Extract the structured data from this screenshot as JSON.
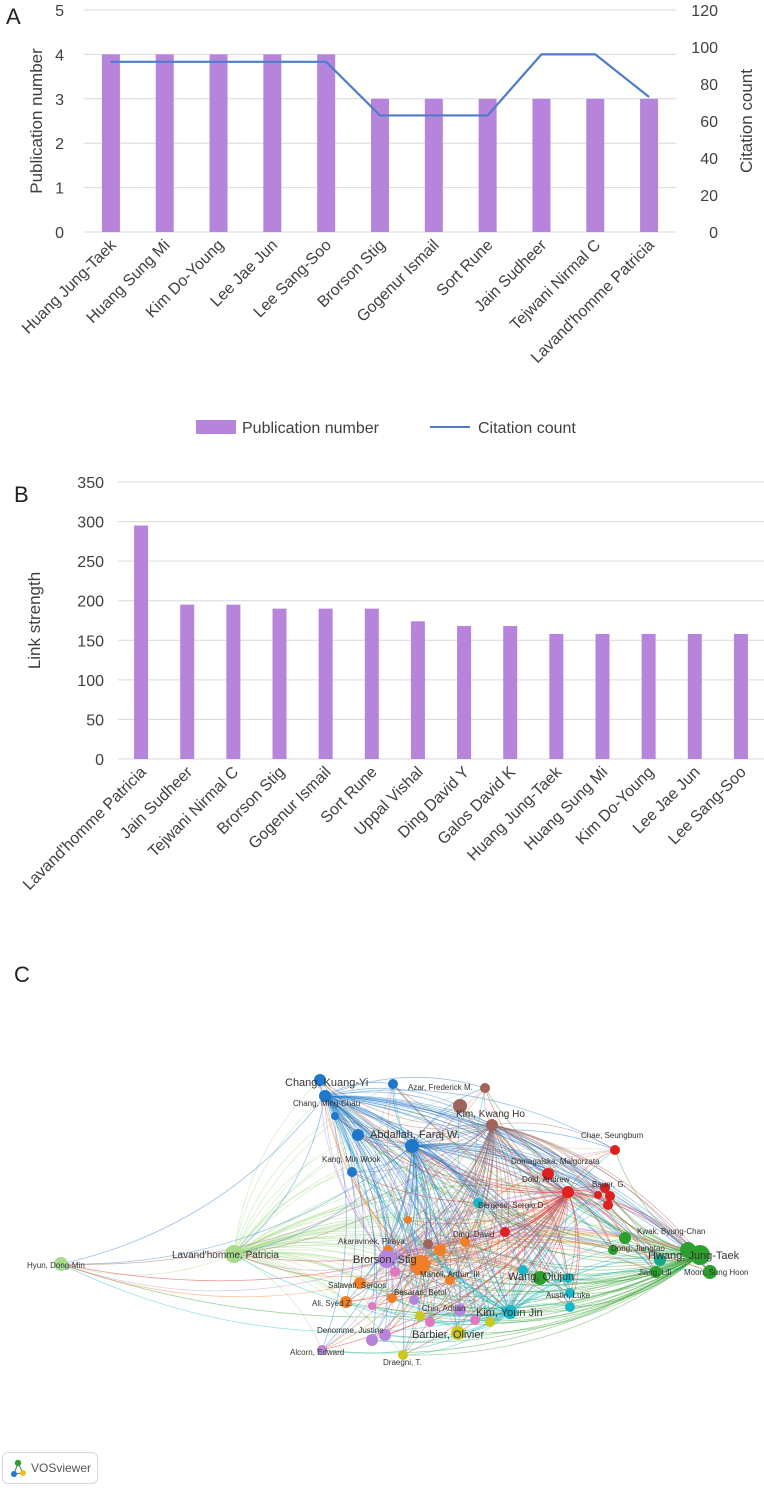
{
  "panels": {
    "a": "A",
    "b": "B",
    "c": "C"
  },
  "colors": {
    "bar": "#b784dc",
    "line": "#4f7cc9",
    "grid": "#d9d9d9"
  },
  "chart_data": [
    {
      "type": "bar",
      "title": "",
      "categories": [
        "Huang Jung-Taek",
        "Huang Sung Mi",
        "Kim Do-Young",
        "Lee Jae Jun",
        "Lee Sang-Soo",
        "Brorson Stig",
        "Gogenur Ismail",
        "Sort Rune",
        "Jain Sudheer",
        "Tejwani Nirmal C",
        "Lavand'homme Patricia"
      ],
      "series": [
        {
          "name": "Publication number",
          "kind": "bar",
          "axis": "left",
          "values": [
            4,
            4,
            4,
            4,
            4,
            3,
            3,
            3,
            3,
            3,
            3
          ]
        },
        {
          "name": "Citation count",
          "kind": "line",
          "axis": "right",
          "values": [
            92,
            92,
            92,
            92,
            92,
            63,
            63,
            63,
            96,
            96,
            73
          ]
        }
      ],
      "ylabel": "Publication number",
      "y2label": "Citation count",
      "ylim": [
        0,
        5
      ],
      "y2lim": [
        0,
        120
      ],
      "yticks": [
        "0",
        "1",
        "2",
        "3",
        "4",
        "5"
      ],
      "y2ticks": [
        "0",
        "20",
        "40",
        "60",
        "80",
        "100",
        "120"
      ],
      "legend": [
        "Publication number",
        "Citation count"
      ],
      "legend_position": "bottom"
    },
    {
      "type": "bar",
      "title": "",
      "categories": [
        "Lavand'homme Patricia",
        "Jain Sudheer",
        "Tejwani Nirmal C",
        "Brorson Stig",
        "Gogenur Ismail",
        "Sort Rune",
        "Uppal Vishal",
        "Ding David Y",
        "Galos David K",
        "Huang Jung-Taek",
        "Huang Sung Mi",
        "Kim Do-Young",
        "Lee Jae Jun",
        "Lee Sang-Soo"
      ],
      "values": [
        295,
        195,
        195,
        190,
        190,
        190,
        174,
        168,
        168,
        158,
        158,
        158,
        158,
        158
      ],
      "ylabel": "Link strength",
      "ylim": [
        0,
        350
      ],
      "yticks": [
        "0",
        "50",
        "100",
        "150",
        "200",
        "250",
        "300",
        "350"
      ]
    }
  ],
  "network": {
    "nodes": [
      {
        "label": "Chang, Kuang-Yi",
        "color": "#1f77c9"
      },
      {
        "label": "Chang, Ming-Chau",
        "color": "#1f77c9"
      },
      {
        "label": "Azar, Frederick M.",
        "color": "#a0645a"
      },
      {
        "label": "Kim, Kwang Ho",
        "color": "#a0645a"
      },
      {
        "label": "Abdallah, Faraj W.",
        "color": "#1f77c9"
      },
      {
        "label": "Chae, Seungbum",
        "color": "#e02020"
      },
      {
        "label": "Kang, Min Wook",
        "color": "#1f77c9"
      },
      {
        "label": "Domagalska, Malgorzata",
        "color": "#e02020"
      },
      {
        "label": "Dold, Andrew",
        "color": "#e02020"
      },
      {
        "label": "Bauer, G.",
        "color": "#e02020"
      },
      {
        "label": "Bergese, Sergio D.",
        "color": "#17b8c8"
      },
      {
        "label": "Kwak, Byung-Chan",
        "color": "#2ca02c"
      },
      {
        "label": "Lavand'homme, Patricia",
        "color": "#a6dc8c"
      },
      {
        "label": "Akaravinek, Piraya",
        "color": "#f07e26"
      },
      {
        "label": "Ding, David",
        "color": "#f07e26"
      },
      {
        "label": "Dong, Jiangtao",
        "color": "#2ca02c"
      },
      {
        "label": "Hwang, Jung-Taek",
        "color": "#2ca02c"
      },
      {
        "label": "Hyun, Dong-Min",
        "color": "#a6dc8c"
      },
      {
        "label": "Brorson, Stig",
        "color": "#b784dc"
      },
      {
        "label": "Jiang, Lili",
        "color": "#2ca02c"
      },
      {
        "label": "Moon, Sung Hoon",
        "color": "#2ca02c"
      },
      {
        "label": "Manoli, Arthur, III",
        "color": "#f07e26"
      },
      {
        "label": "Wang, Qiujun",
        "color": "#2ca02c"
      },
      {
        "label": "Salavati, Seroos",
        "color": "#f07e26"
      },
      {
        "label": "Austin, Luke",
        "color": "#17b8c8"
      },
      {
        "label": "Basaran, Betul",
        "color": "#f07e26"
      },
      {
        "label": "Ali, Syed Z.",
        "color": "#f07e26"
      },
      {
        "label": "Chin, Adrian",
        "color": "#b784dc"
      },
      {
        "label": "Kim, Youn Jin",
        "color": "#17b8c8"
      },
      {
        "label": "Barbier, Olivier",
        "color": "#c8c81e"
      },
      {
        "label": "Denomme, Justine",
        "color": "#b784dc"
      },
      {
        "label": "Alcorn, Edward",
        "color": "#b784dc"
      },
      {
        "label": "Draegni, T.",
        "color": "#c8c81e"
      }
    ]
  },
  "logo": {
    "text": "VOSviewer"
  }
}
